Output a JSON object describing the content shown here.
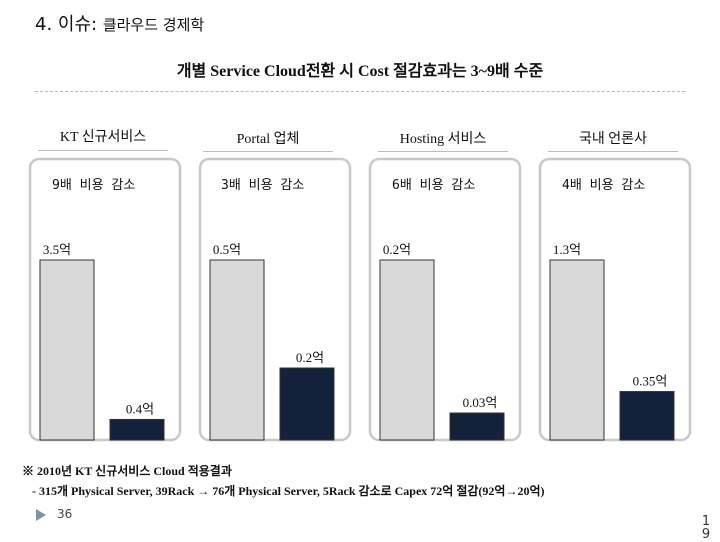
{
  "header": {
    "section": "4. 이슈:",
    "subtitle": "클라우드 경제학",
    "headline": "개별 Service Cloud전환 시  Cost 절감효과는 3~9배 수준"
  },
  "chart_data": {
    "type": "bar",
    "title": "개별 Service Cloud전환 시  Cost 절감효과는 3~9배 수준",
    "panels": [
      {
        "category": "KT 신규서비스",
        "saving": "9배 비용 감소",
        "before": {
          "value": 3.5,
          "label": "3.5억"
        },
        "after": {
          "value": 0.4,
          "label": "0.4억"
        }
      },
      {
        "category": "Portal 업체",
        "saving": "3배 비용 감소",
        "before": {
          "value": 0.5,
          "label": "0.5억"
        },
        "after": {
          "value": 0.2,
          "label": "0.2억"
        }
      },
      {
        "category": "Hosting 서비스",
        "saving": "6배 비용 감소",
        "before": {
          "value": 0.2,
          "label": "0.2억"
        },
        "after": {
          "value": 0.03,
          "label": "0.03억"
        }
      },
      {
        "category": "국내 언론사",
        "saving": "4배 비용 감소",
        "before": {
          "value": 1.3,
          "label": "1.3억"
        },
        "after": {
          "value": 0.35,
          "label": "0.35억"
        }
      }
    ],
    "colors": {
      "before": "#d9d9d9",
      "after": "#13213a",
      "panel_border": "#c8c8c8"
    }
  },
  "footnote": {
    "line1": "※ 2010년 KT 신규서비스 Cloud 적용결과",
    "line2": "- 315개 Physical Server, 39Rack → 76개 Physical Server, 5Rack 감소로 Capex 72억 절감(92억→20억)"
  },
  "page_number": "36",
  "side_number": "1 9"
}
